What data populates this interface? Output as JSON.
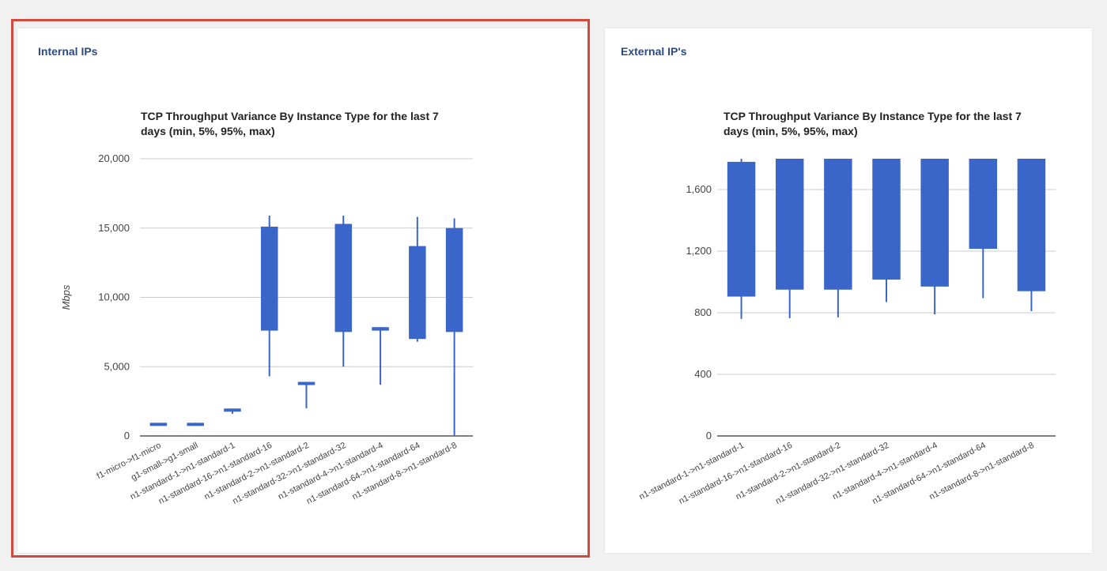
{
  "panels": [
    {
      "title": "Internal IPs",
      "chart_data": {
        "type": "candlestick",
        "title": "TCP Throughput Variance By Instance Type for the last 7 days (min, 5%, 95%, max)",
        "title_lines": [
          "TCP Throughput Variance By Instance Type for the last 7",
          "days (min, 5%, 95%, max)"
        ],
        "ylabel": "Mbps",
        "xlabel": "",
        "ylim": [
          0,
          20000
        ],
        "yticks": [
          0,
          5000,
          10000,
          15000,
          20000
        ],
        "ytick_labels": [
          "0",
          "5,000",
          "10,000",
          "15,000",
          "20,000"
        ],
        "grid": true,
        "color": "#3b66c9",
        "categories": [
          "f1-micro->f1-micro",
          "g1-small->g1-small",
          "n1-standard-1->n1-standard-1",
          "n1-standard-16->n1-standard-16",
          "n1-standard-2->n1-standard-2",
          "n1-standard-32->n1-standard-32",
          "n1-standard-4->n1-standard-4",
          "n1-standard-64->n1-standard-64",
          "n1-standard-8->n1-standard-8"
        ],
        "series": [
          {
            "min": 780,
            "p5": 780,
            "p95": 950,
            "max": 950
          },
          {
            "min": 780,
            "p5": 780,
            "p95": 950,
            "max": 950
          },
          {
            "min": 1600,
            "p5": 1780,
            "p95": 1980,
            "max": 1980
          },
          {
            "min": 4300,
            "p5": 7600,
            "p95": 15100,
            "max": 15900
          },
          {
            "min": 2000,
            "p5": 3700,
            "p95": 3900,
            "max": 3900
          },
          {
            "min": 5000,
            "p5": 7500,
            "p95": 15300,
            "max": 15900
          },
          {
            "min": 3700,
            "p5": 7600,
            "p95": 7850,
            "max": 7850
          },
          {
            "min": 6800,
            "p5": 7000,
            "p95": 13700,
            "max": 15800
          },
          {
            "min": 0,
            "p5": 7500,
            "p95": 15000,
            "max": 15700
          }
        ]
      }
    },
    {
      "title": "External IP's",
      "chart_data": {
        "type": "candlestick",
        "title": "TCP Throughput Variance By Instance Type for the last 7 days (min, 5%, 95%, max)",
        "title_lines": [
          "TCP Throughput Variance By Instance Type for the last 7",
          "days (min, 5%, 95%, max)"
        ],
        "ylabel": "",
        "xlabel": "",
        "ylim": [
          0,
          1800
        ],
        "yticks": [
          0,
          400,
          800,
          1200,
          1600
        ],
        "ytick_labels": [
          "0",
          "400",
          "800",
          "1,200",
          "1,600"
        ],
        "grid": true,
        "color": "#3b66c9",
        "categories": [
          "n1-standard-1->n1-standard-1",
          "n1-standard-16->n1-standard-16",
          "n1-standard-2->n1-standard-2",
          "n1-standard-32->n1-standard-32",
          "n1-standard-4->n1-standard-4",
          "n1-standard-64->n1-standard-64",
          "n1-standard-8->n1-standard-8"
        ],
        "series": [
          {
            "min": 760,
            "p5": 905,
            "p95": 1780,
            "max": 1800
          },
          {
            "min": 765,
            "p5": 950,
            "p95": 1800,
            "max": 1800
          },
          {
            "min": 770,
            "p5": 950,
            "p95": 1800,
            "max": 1800
          },
          {
            "min": 870,
            "p5": 1015,
            "p95": 1800,
            "max": 1800
          },
          {
            "min": 790,
            "p5": 970,
            "p95": 1800,
            "max": 1800
          },
          {
            "min": 895,
            "p5": 1215,
            "p95": 1800,
            "max": 1800
          },
          {
            "min": 810,
            "p5": 940,
            "p95": 1800,
            "max": 1800
          }
        ]
      }
    }
  ]
}
